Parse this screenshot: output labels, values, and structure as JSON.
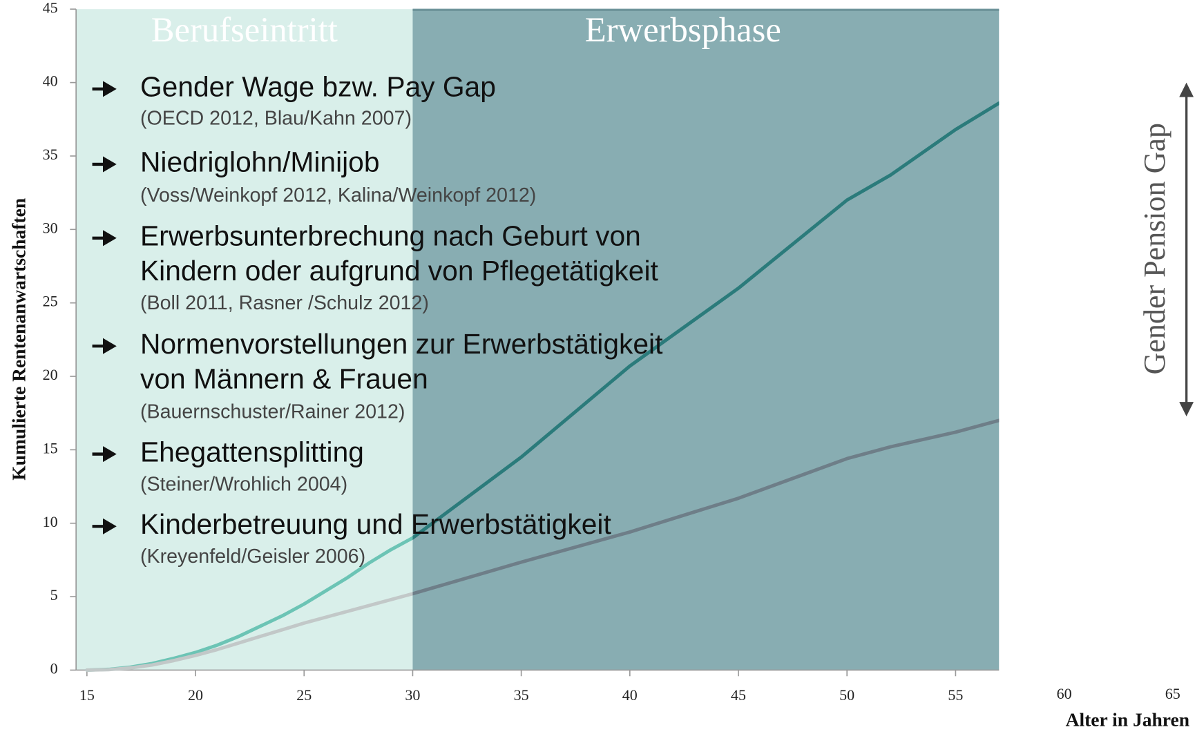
{
  "chart_data": {
    "type": "line",
    "y_label": "Kumulierte Rentenanwartschaften",
    "x_label": "Alter in Jahren",
    "annotation": "Gender Pension Gap",
    "xlim": [
      14.5,
      65
    ],
    "xticks": [
      15,
      20,
      25,
      30,
      35,
      40,
      45,
      50,
      55,
      60,
      65
    ],
    "ylim": [
      0,
      45
    ],
    "yticks": [
      0,
      5,
      10,
      15,
      20,
      25,
      30,
      35,
      40,
      45
    ],
    "bands": [
      {
        "label": "Berufseintritt",
        "start": 14.5,
        "end": 30,
        "color": "#d9efea"
      },
      {
        "label": "Erwerbsphase",
        "start": 30,
        "end": 57,
        "color": "#88adb2"
      }
    ],
    "x": [
      15,
      16,
      17,
      18,
      19,
      20,
      21,
      22,
      23,
      24,
      25,
      26,
      27,
      28,
      29,
      30,
      35,
      40,
      45,
      50,
      52,
      55,
      57
    ],
    "series": [
      {
        "colors": [
          "#6cc4b5",
          "#2b7b7b"
        ],
        "values": [
          0,
          0.05,
          0.2,
          0.45,
          0.8,
          1.2,
          1.7,
          2.3,
          3.0,
          3.7,
          4.5,
          5.4,
          6.3,
          7.3,
          8.2,
          9.0,
          14.5,
          20.7,
          26,
          32,
          33.7,
          36.8,
          38.6
        ]
      },
      {
        "colors": [
          "#c2c8c8",
          "#6e7e88"
        ],
        "values": [
          0,
          0.03,
          0.15,
          0.35,
          0.65,
          1.0,
          1.4,
          1.85,
          2.3,
          2.75,
          3.2,
          3.6,
          4.0,
          4.4,
          4.8,
          5.2,
          7.35,
          9.4,
          11.7,
          14.4,
          15.2,
          16.2,
          17.0
        ]
      }
    ],
    "items": [
      {
        "lines": [
          "Gender Wage bzw. Pay Gap"
        ],
        "source": "(OECD 2012, Blau/Kahn 2007)"
      },
      {
        "lines": [
          "Niedriglohn/Minijob"
        ],
        "source": "(Voss/Weinkopf 2012, Kalina/Weinkopf 2012)"
      },
      {
        "lines": [
          "Erwerbsunterbrechung nach Geburt von",
          "Kindern oder aufgrund von Pflegetätigkeit"
        ],
        "source": "(Boll 2011, Rasner /Schulz 2012)"
      },
      {
        "lines": [
          "Normenvorstellungen zur Erwerbstätigkeit",
          "von Männern & Frauen"
        ],
        "source": "(Bauernschuster/Rainer 2012)"
      },
      {
        "lines": [
          "Ehegattensplitting"
        ],
        "source": "(Steiner/Wrohlich 2004)"
      },
      {
        "lines": [
          "Kinderbetreuung und Erwerbstätigkeit"
        ],
        "source": "(Kreyenfeld/Geisler 2006)"
      }
    ]
  }
}
